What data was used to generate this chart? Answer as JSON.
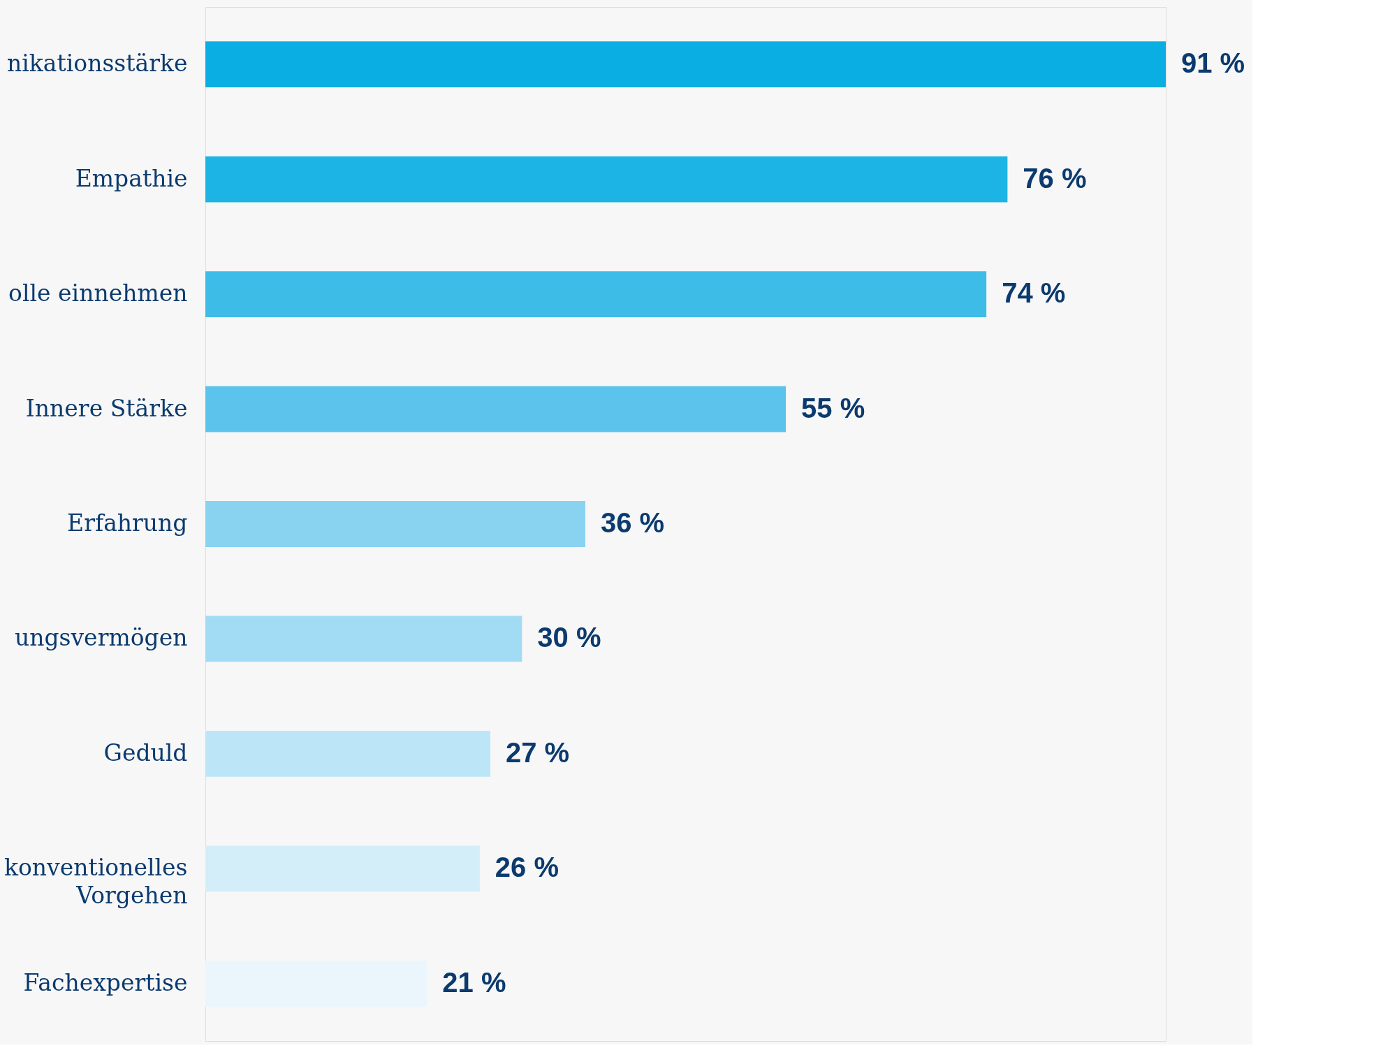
{
  "chart_data": {
    "type": "bar",
    "orientation": "horizontal",
    "categories": [
      "nikationsstärke",
      "Empathie",
      "olle einnehmen",
      "Innere Stärke",
      "Erfahrung",
      "ungsvermögen",
      "Geduld",
      "konventionelles Vorgehen",
      "Fachexpertise"
    ],
    "values": [
      91,
      76,
      74,
      55,
      36,
      30,
      27,
      26,
      21
    ],
    "colors": [
      "#0aaee2",
      "#1cb3e5",
      "#3dbce8",
      "#5cc4ec",
      "#89d3f1",
      "#a2dcf4",
      "#bce6f7",
      "#d4eef9",
      "#eaf6fc"
    ],
    "value_labels": [
      "91 %",
      "76 %",
      "74 %",
      "55 %",
      "36 %",
      "30 %",
      "27 %",
      "26 %",
      "21 %"
    ],
    "grid": false
  }
}
